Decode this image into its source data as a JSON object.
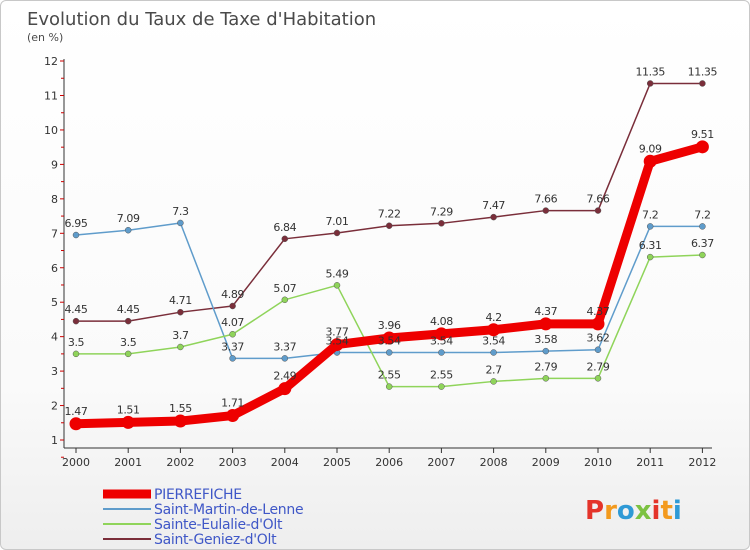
{
  "title": "Evolution du Taux de Taxe d'Habitation",
  "subtitle": "(en %)",
  "logo": {
    "letters": [
      "P",
      "r",
      "o",
      "x",
      "i",
      "t",
      "i"
    ],
    "colors": [
      "#e4342a",
      "#f39a1e",
      "#2f9ad6",
      "#7cc242",
      "#e4342a",
      "#f39a1e",
      "#2f9ad6"
    ]
  },
  "chart_data": {
    "type": "line",
    "x": [
      "2000",
      "2001",
      "2002",
      "2003",
      "2004",
      "2005",
      "2006",
      "2007",
      "2008",
      "2009",
      "2010",
      "2011",
      "2012"
    ],
    "y_ticks": [
      "1",
      "2",
      "3",
      "4",
      "5",
      "6",
      "7",
      "8",
      "9",
      "10",
      "11",
      "12"
    ],
    "ylim": [
      1,
      12
    ],
    "grid": false,
    "legend_position": "bottom-left",
    "series": [
      {
        "name": "PIERREFICHE",
        "color": "#ee0000",
        "values": [
          1.47,
          1.51,
          1.55,
          1.71,
          2.49,
          3.77,
          3.96,
          4.08,
          4.2,
          4.37,
          4.37,
          9.09,
          9.51
        ],
        "labels": [
          "1.47",
          "1.51",
          "1.55",
          "1.71",
          "2.49",
          "3.77",
          "3.96",
          "4.08",
          "4.2",
          "4.37",
          "4.37",
          "9.09",
          "9.51"
        ]
      },
      {
        "name": "Saint-Martin-de-Lenne",
        "color": "#5f9ccb",
        "values": [
          6.95,
          7.09,
          7.3,
          3.37,
          3.37,
          3.54,
          3.54,
          3.54,
          3.54,
          3.58,
          3.62,
          7.2,
          7.2
        ],
        "labels": [
          "6.95",
          "7.09",
          "7.3",
          "3.37",
          "3.37",
          "3.54",
          "3.54",
          "3.54",
          "3.54",
          "3.58",
          "3.62",
          "7.2",
          "7.2"
        ]
      },
      {
        "name": "Sainte-Eulalie-d'Olt",
        "color": "#8fd45a",
        "values": [
          3.5,
          3.5,
          3.7,
          4.07,
          5.07,
          5.49,
          2.55,
          2.55,
          2.7,
          2.79,
          2.79,
          6.31,
          6.37
        ],
        "labels": [
          "3.5",
          "3.5",
          "3.7",
          "4.07",
          "5.07",
          "5.49",
          "2.55",
          "2.55",
          "2.7",
          "2.79",
          "2.79",
          "6.31",
          "6.37"
        ]
      },
      {
        "name": "Saint-Geniez-d'Olt",
        "color": "#7a2e3a",
        "values": [
          4.45,
          4.45,
          4.71,
          4.89,
          6.84,
          7.01,
          7.22,
          7.29,
          7.47,
          7.66,
          7.66,
          11.35,
          11.35
        ],
        "labels": [
          "4.45",
          "4.45",
          "4.71",
          "4.89",
          "6.84",
          "7.01",
          "7.22",
          "7.29",
          "7.47",
          "7.66",
          "7.66",
          "11.35",
          "11.35"
        ]
      }
    ]
  }
}
